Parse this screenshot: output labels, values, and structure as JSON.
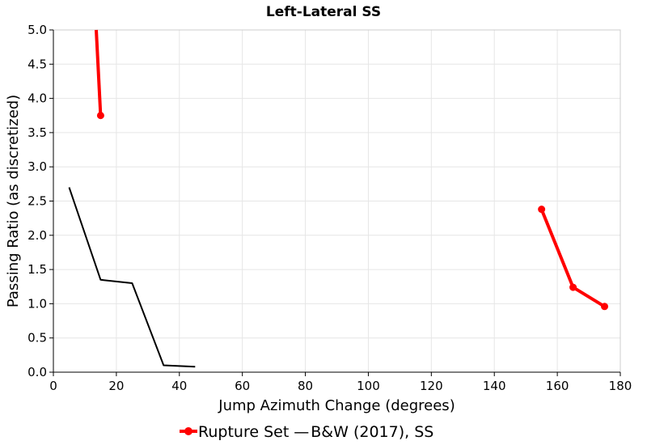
{
  "chart_data": {
    "type": "line",
    "title": "Left-Lateral SS",
    "xlabel": "Jump Azimuth Change (degrees)",
    "ylabel": "Passing Ratio (as discretized)",
    "xlim": [
      0,
      180
    ],
    "ylim": [
      0,
      5
    ],
    "xticks": [
      0,
      20,
      40,
      60,
      80,
      100,
      120,
      140,
      160,
      180
    ],
    "yticks": [
      "0.0",
      "0.5",
      "1.0",
      "1.5",
      "2.0",
      "2.5",
      "3.0",
      "3.5",
      "4.0",
      "4.5",
      "5.0"
    ],
    "grid": true,
    "legend_position": "bottom-center",
    "series": [
      {
        "name": "Rupture Set",
        "color": "#ff0000",
        "style": "line-with-markers",
        "segments": [
          [
            [
              13.6,
              5.0
            ],
            [
              15,
              3.75
            ]
          ],
          [
            [
              155,
              2.38
            ],
            [
              165,
              1.24
            ],
            [
              175,
              0.96
            ]
          ]
        ],
        "markers": [
          [
            15,
            3.75
          ],
          [
            155,
            2.38
          ],
          [
            165,
            1.24
          ],
          [
            175,
            0.96
          ]
        ]
      },
      {
        "name": "B&W (2017), SS",
        "color": "#000000",
        "style": "line",
        "segments": [
          [
            [
              5,
              2.7
            ],
            [
              15,
              1.35
            ],
            [
              25,
              1.3
            ],
            [
              35,
              0.1
            ],
            [
              45,
              0.08
            ]
          ]
        ],
        "markers": []
      }
    ]
  },
  "legend": {
    "red_label": "Rupture Set",
    "black_label": "B&W (2017), SS"
  }
}
